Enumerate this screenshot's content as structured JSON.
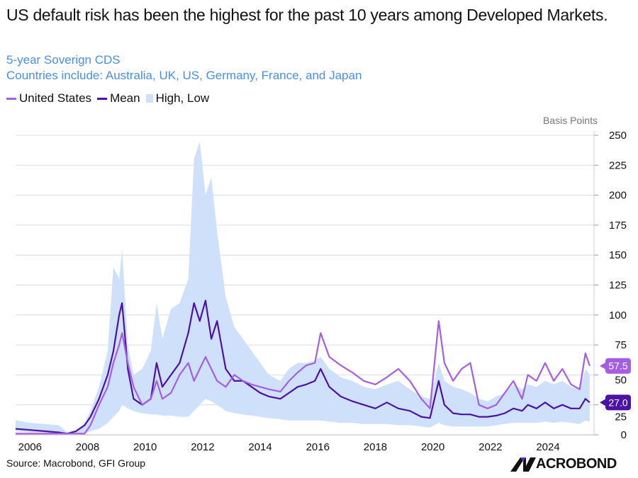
{
  "header": {
    "title": "US default risk has been the highest for the past 10 years among Developed Markets.",
    "subtitle_1": "5-year Soverign CDS",
    "subtitle_2": "Countries include: Australia, UK, US, Germany, France, and Japan"
  },
  "footer": {
    "source": "Source: Macrobond, GFI Group",
    "logo_text": "ACROBOND"
  },
  "colors": {
    "us": "#a55ee0",
    "mean": "#4b12a3",
    "band": "#cfe0fb",
    "subtitle": "#4a8fe0",
    "grid": "#dcdcdc"
  },
  "chart_data": {
    "type": "line",
    "title": "US default risk has been the highest for the past 10 years among Developed Markets.",
    "ylabel": "Basis Points",
    "xlim": [
      2005.5,
      2025.6
    ],
    "ylim": [
      0,
      250
    ],
    "y_ticks": [
      0,
      25,
      50,
      75,
      100,
      125,
      150,
      175,
      200,
      225,
      250
    ],
    "x_ticks": [
      "2006",
      "2008",
      "2010",
      "2012",
      "2014",
      "2016",
      "2018",
      "2020",
      "2022",
      "2024"
    ],
    "grid": true,
    "legend": {
      "position": "top-left",
      "entries": [
        "United States",
        "Mean",
        "High, Low"
      ]
    },
    "end_labels": [
      {
        "series": "United States",
        "value": "57.5"
      },
      {
        "series": "Mean",
        "value": "27.0"
      }
    ],
    "x": [
      2005.5,
      2006.0,
      2006.5,
      2007.0,
      2007.3,
      2007.6,
      2007.9,
      2008.1,
      2008.4,
      2008.7,
      2008.9,
      2009.1,
      2009.2,
      2009.4,
      2009.6,
      2009.9,
      2010.2,
      2010.4,
      2010.6,
      2010.9,
      2011.2,
      2011.5,
      2011.7,
      2011.9,
      2012.1,
      2012.3,
      2012.5,
      2012.8,
      2013.1,
      2013.4,
      2013.7,
      2014.0,
      2014.3,
      2014.7,
      2015.0,
      2015.3,
      2015.6,
      2015.9,
      2016.1,
      2016.4,
      2016.8,
      2017.2,
      2017.6,
      2018.0,
      2018.4,
      2018.8,
      2019.2,
      2019.6,
      2019.9,
      2020.2,
      2020.4,
      2020.7,
      2021.0,
      2021.3,
      2021.6,
      2021.9,
      2022.2,
      2022.5,
      2022.8,
      2023.1,
      2023.3,
      2023.6,
      2023.9,
      2024.2,
      2024.5,
      2024.8,
      2025.1,
      2025.3,
      2025.45
    ],
    "series": [
      {
        "name": "United States",
        "values": [
          1,
          1,
          1,
          1,
          1,
          1,
          1,
          8,
          25,
          40,
          60,
          75,
          85,
          60,
          40,
          25,
          30,
          45,
          30,
          35,
          50,
          60,
          45,
          55,
          65,
          55,
          45,
          40,
          50,
          45,
          42,
          40,
          38,
          36,
          45,
          52,
          58,
          60,
          85,
          65,
          58,
          52,
          45,
          42,
          48,
          55,
          45,
          30,
          22,
          95,
          60,
          45,
          55,
          60,
          25,
          22,
          25,
          35,
          45,
          30,
          50,
          45,
          60,
          45,
          55,
          42,
          38,
          68,
          57.5
        ]
      },
      {
        "name": "Mean",
        "values": [
          5,
          4,
          3,
          2,
          1,
          3,
          8,
          15,
          30,
          50,
          70,
          100,
          110,
          55,
          30,
          25,
          30,
          60,
          40,
          50,
          60,
          85,
          110,
          95,
          112,
          80,
          95,
          55,
          45,
          45,
          40,
          35,
          32,
          30,
          35,
          40,
          42,
          45,
          55,
          40,
          32,
          28,
          25,
          22,
          27,
          22,
          20,
          15,
          14,
          45,
          25,
          18,
          17,
          17,
          15,
          15,
          16,
          18,
          22,
          20,
          25,
          22,
          27,
          22,
          25,
          22,
          22,
          30,
          27
        ]
      },
      {
        "name": "High",
        "values": [
          12,
          10,
          9,
          8,
          2,
          4,
          10,
          20,
          40,
          70,
          140,
          130,
          155,
          75,
          50,
          55,
          70,
          110,
          80,
          105,
          110,
          130,
          230,
          245,
          200,
          215,
          170,
          115,
          90,
          80,
          70,
          60,
          50,
          45,
          55,
          60,
          60,
          62,
          65,
          55,
          48,
          45,
          40,
          38,
          42,
          45,
          38,
          32,
          30,
          60,
          45,
          40,
          38,
          35,
          30,
          28,
          32,
          35,
          42,
          38,
          42,
          40,
          45,
          42,
          45,
          40,
          38,
          55,
          50
        ]
      },
      {
        "name": "Low",
        "values": [
          3,
          2,
          2,
          1,
          0,
          0,
          1,
          3,
          5,
          10,
          15,
          20,
          25,
          22,
          20,
          18,
          17,
          17,
          16,
          16,
          15,
          15,
          20,
          25,
          30,
          28,
          25,
          20,
          18,
          17,
          16,
          15,
          14,
          13,
          12,
          12,
          12,
          12,
          12,
          11,
          10,
          10,
          9,
          9,
          9,
          8,
          8,
          7,
          6,
          10,
          8,
          7,
          7,
          7,
          7,
          7,
          8,
          9,
          10,
          10,
          10,
          10,
          11,
          10,
          11,
          10,
          9,
          12,
          11
        ]
      }
    ]
  }
}
